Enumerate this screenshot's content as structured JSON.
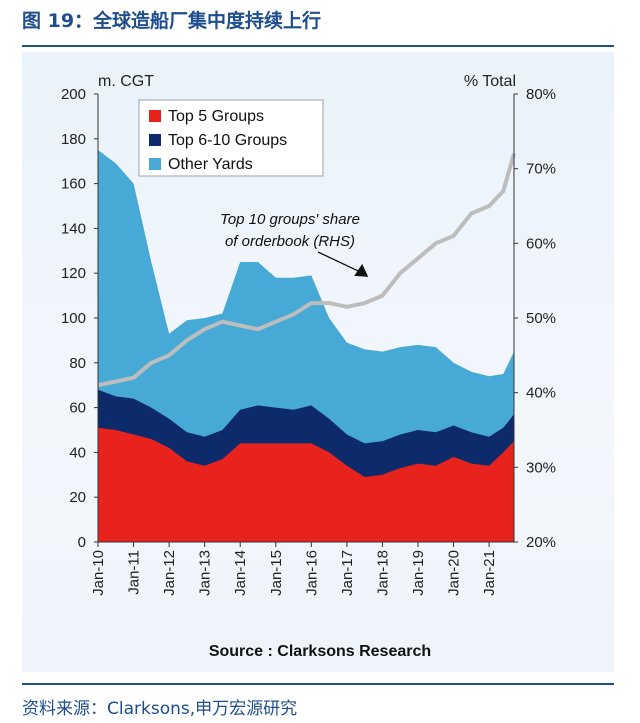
{
  "header": {
    "title": "图 19：全球造船厂集中度持续上行"
  },
  "source_line": "Source : Clarksons Research",
  "footer": {
    "source": "资料来源：Clarksons,申万宏源研究"
  },
  "colors": {
    "accent": "#1f4e8c",
    "top5": "#e8231d",
    "top6_10": "#0d2b6b",
    "other": "#46a9d6",
    "share_line": "#bdbdbd"
  },
  "chart_data": {
    "type": "area",
    "stacked": true,
    "left_axis": {
      "unit": "m. CGT",
      "ylim": [
        0,
        200
      ],
      "ticks": [
        "0",
        "20",
        "40",
        "60",
        "80",
        "100",
        "120",
        "140",
        "160",
        "180",
        "200"
      ]
    },
    "right_axis": {
      "unit": "% Total",
      "ylim": [
        20,
        80
      ],
      "ticks": [
        "20%",
        "30%",
        "40%",
        "50%",
        "60%",
        "70%",
        "80%"
      ]
    },
    "x_ticks": [
      "Jan-10",
      "Jan-11",
      "Jan-12",
      "Jan-13",
      "Jan-14",
      "Jan-15",
      "Jan-16",
      "Jan-17",
      "Jan-18",
      "Jan-19",
      "Jan-20",
      "Jan-21"
    ],
    "x_years": [
      2010,
      2011,
      2012,
      2013,
      2014,
      2015,
      2016,
      2017,
      2018,
      2019,
      2020,
      2021
    ],
    "x_range": [
      2010,
      2021.7
    ],
    "legend_position": "top-left",
    "grid": false,
    "x": [
      2010.0,
      2010.5,
      2011.0,
      2011.5,
      2012.0,
      2012.5,
      2013.0,
      2013.5,
      2014.0,
      2014.5,
      2015.0,
      2015.5,
      2016.0,
      2016.5,
      2017.0,
      2017.5,
      2018.0,
      2018.5,
      2019.0,
      2019.5,
      2020.0,
      2020.5,
      2021.0,
      2021.4,
      2021.7
    ],
    "series": [
      {
        "name": "Top 5 Groups",
        "axis": "left",
        "values": [
          51,
          50,
          48,
          46,
          42,
          36,
          34,
          37,
          44,
          44,
          44,
          44,
          44,
          40,
          34,
          29,
          30,
          33,
          35,
          34,
          38,
          35,
          34,
          40,
          45
        ]
      },
      {
        "name": "Top 6-10 Groups",
        "axis": "left",
        "values": [
          17,
          15,
          16,
          14,
          13,
          13,
          13,
          13,
          15,
          17,
          16,
          15,
          17,
          15,
          14,
          15,
          15,
          15,
          15,
          15,
          14,
          14,
          13,
          11,
          12
        ]
      },
      {
        "name": "Other Yards",
        "axis": "left",
        "values": [
          107,
          104,
          96,
          65,
          38,
          50,
          53,
          52,
          66,
          64,
          58,
          59,
          58,
          45,
          41,
          42,
          40,
          39,
          38,
          38,
          28,
          27,
          27,
          24,
          28
        ]
      },
      {
        "name": "Top 10 groups' share of orderbook (RHS)",
        "axis": "right",
        "type": "line",
        "values": [
          41,
          41.5,
          42,
          44,
          45,
          47,
          48.5,
          49.5,
          49,
          48.5,
          49.5,
          50.5,
          52,
          52,
          51.5,
          52,
          53,
          56,
          58,
          60,
          61,
          64,
          65,
          67,
          72
        ]
      }
    ],
    "annotation": {
      "lines": [
        "Top 10 groups' share",
        "of orderbook (RHS)"
      ],
      "arrow_to": {
        "x": 2017.6,
        "y_right": 55.5
      }
    }
  }
}
